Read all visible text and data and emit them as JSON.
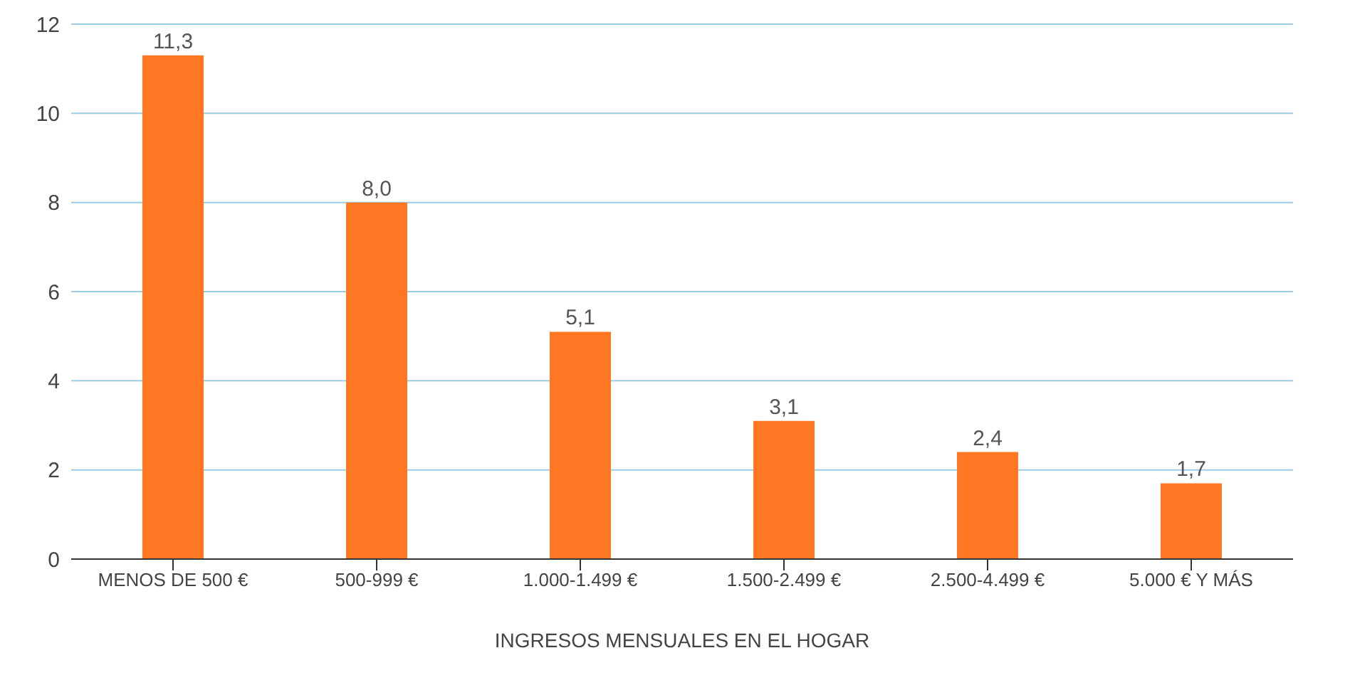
{
  "chart_data": {
    "type": "bar",
    "xlabel": "INGRESOS MENSUALES EN EL HOGAR",
    "categories": [
      "MENOS DE 500 €",
      "500-999 €",
      "1.000-1.499 €",
      "1.500-2.499 €",
      "2.500-4.499 €",
      "5.000 € Y MÁS"
    ],
    "values": [
      11.3,
      8.0,
      5.1,
      3.1,
      2.4,
      1.7
    ],
    "value_labels": [
      "11,3",
      "8,0",
      "5,1",
      "3,1",
      "2,4",
      "1,7"
    ],
    "color": "#ff7722",
    "ylim": [
      0,
      12
    ],
    "yticks": [
      0,
      2,
      4,
      6,
      8,
      10,
      12
    ],
    "grid": "y"
  }
}
